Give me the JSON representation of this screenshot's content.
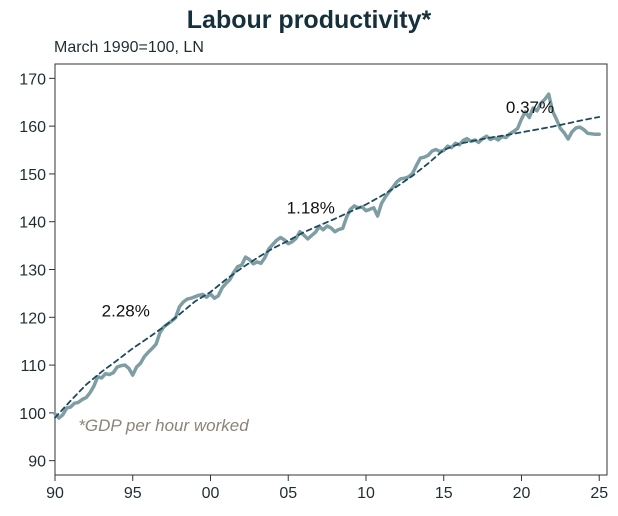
{
  "chart_data": {
    "type": "line",
    "title": "Labour productivity*",
    "subtitle": "March 1990=100, LN",
    "note": "*GDP per hour worked",
    "xlabel": "",
    "ylabel": "",
    "x_ticks": [
      {
        "value": 1990,
        "label": "90"
      },
      {
        "value": 1995,
        "label": "95"
      },
      {
        "value": 2000,
        "label": "00"
      },
      {
        "value": 2005,
        "label": "05"
      },
      {
        "value": 2010,
        "label": "10"
      },
      {
        "value": 2015,
        "label": "15"
      },
      {
        "value": 2020,
        "label": "20"
      },
      {
        "value": 2025,
        "label": "25"
      }
    ],
    "y_ticks": [
      90,
      100,
      110,
      120,
      130,
      140,
      150,
      160,
      170
    ],
    "xlim": [
      1990,
      2025.5
    ],
    "ylim": [
      87,
      173
    ],
    "grid": false,
    "series": [
      {
        "color": "#7e9ea4",
        "style": "solid",
        "points": [
          [
            1990.0,
            99.8
          ],
          [
            1990.25,
            98.9
          ],
          [
            1990.5,
            99.6
          ],
          [
            1990.75,
            101.0
          ],
          [
            1991.0,
            101.2
          ],
          [
            1991.25,
            102.0
          ],
          [
            1991.5,
            102.2
          ],
          [
            1991.75,
            102.8
          ],
          [
            1992.0,
            103.2
          ],
          [
            1992.25,
            104.2
          ],
          [
            1992.5,
            105.6
          ],
          [
            1992.75,
            107.6
          ],
          [
            1993.0,
            107.3
          ],
          [
            1993.25,
            108.2
          ],
          [
            1993.5,
            108.0
          ],
          [
            1993.75,
            108.4
          ],
          [
            1994.0,
            109.6
          ],
          [
            1994.25,
            109.9
          ],
          [
            1994.5,
            110.0
          ],
          [
            1994.75,
            109.3
          ],
          [
            1995.0,
            107.9
          ],
          [
            1995.25,
            109.6
          ],
          [
            1995.5,
            110.4
          ],
          [
            1995.75,
            111.8
          ],
          [
            1996.0,
            112.7
          ],
          [
            1996.25,
            113.5
          ],
          [
            1996.5,
            114.4
          ],
          [
            1996.75,
            116.8
          ],
          [
            1997.0,
            118.0
          ],
          [
            1997.25,
            118.6
          ],
          [
            1997.5,
            119.2
          ],
          [
            1997.75,
            119.9
          ],
          [
            1998.0,
            122.2
          ],
          [
            1998.25,
            123.2
          ],
          [
            1998.5,
            123.8
          ],
          [
            1998.75,
            124.0
          ],
          [
            1999.0,
            124.3
          ],
          [
            1999.25,
            124.6
          ],
          [
            1999.5,
            124.8
          ],
          [
            1999.75,
            124.2
          ],
          [
            2000.0,
            124.9
          ],
          [
            2000.25,
            124.0
          ],
          [
            2000.5,
            124.5
          ],
          [
            2000.75,
            126.2
          ],
          [
            2001.0,
            127.1
          ],
          [
            2001.25,
            127.9
          ],
          [
            2001.5,
            129.4
          ],
          [
            2001.75,
            130.6
          ],
          [
            2002.0,
            130.9
          ],
          [
            2002.25,
            132.6
          ],
          [
            2002.5,
            132.1
          ],
          [
            2002.75,
            131.2
          ],
          [
            2003.0,
            131.6
          ],
          [
            2003.25,
            131.3
          ],
          [
            2003.5,
            132.5
          ],
          [
            2003.75,
            134.3
          ],
          [
            2004.0,
            135.2
          ],
          [
            2004.25,
            136.1
          ],
          [
            2004.5,
            136.7
          ],
          [
            2004.75,
            136.2
          ],
          [
            2005.0,
            135.4
          ],
          [
            2005.25,
            135.8
          ],
          [
            2005.5,
            136.5
          ],
          [
            2005.75,
            137.9
          ],
          [
            2006.0,
            137.2
          ],
          [
            2006.25,
            136.4
          ],
          [
            2006.5,
            137.1
          ],
          [
            2006.75,
            137.8
          ],
          [
            2007.0,
            139.0
          ],
          [
            2007.25,
            138.3
          ],
          [
            2007.5,
            139.1
          ],
          [
            2007.75,
            138.7
          ],
          [
            2008.0,
            137.9
          ],
          [
            2008.25,
            138.4
          ],
          [
            2008.5,
            138.6
          ],
          [
            2008.75,
            140.9
          ],
          [
            2009.0,
            142.6
          ],
          [
            2009.25,
            143.3
          ],
          [
            2009.5,
            142.9
          ],
          [
            2009.75,
            143.1
          ],
          [
            2010.0,
            142.3
          ],
          [
            2010.25,
            142.6
          ],
          [
            2010.5,
            142.9
          ],
          [
            2010.75,
            141.2
          ],
          [
            2011.0,
            143.8
          ],
          [
            2011.25,
            145.2
          ],
          [
            2011.5,
            146.3
          ],
          [
            2011.75,
            147.3
          ],
          [
            2012.0,
            148.4
          ],
          [
            2012.25,
            149.0
          ],
          [
            2012.5,
            149.1
          ],
          [
            2012.75,
            149.4
          ],
          [
            2013.0,
            150.1
          ],
          [
            2013.25,
            151.8
          ],
          [
            2013.5,
            153.3
          ],
          [
            2013.75,
            153.5
          ],
          [
            2014.0,
            153.9
          ],
          [
            2014.25,
            154.8
          ],
          [
            2014.5,
            155.1
          ],
          [
            2014.75,
            154.7
          ],
          [
            2015.0,
            154.9
          ],
          [
            2015.25,
            155.8
          ],
          [
            2015.5,
            155.5
          ],
          [
            2015.75,
            156.4
          ],
          [
            2016.0,
            156.1
          ],
          [
            2016.25,
            157.0
          ],
          [
            2016.5,
            157.4
          ],
          [
            2016.75,
            156.8
          ],
          [
            2017.0,
            157.1
          ],
          [
            2017.25,
            156.6
          ],
          [
            2017.5,
            157.4
          ],
          [
            2017.75,
            157.9
          ],
          [
            2018.0,
            157.2
          ],
          [
            2018.25,
            157.6
          ],
          [
            2018.5,
            157.1
          ],
          [
            2018.75,
            157.8
          ],
          [
            2019.0,
            157.6
          ],
          [
            2019.25,
            158.4
          ],
          [
            2019.5,
            158.9
          ],
          [
            2019.75,
            159.5
          ],
          [
            2020.0,
            161.5
          ],
          [
            2020.25,
            163.0
          ],
          [
            2020.5,
            161.8
          ],
          [
            2020.75,
            163.8
          ],
          [
            2021.0,
            163.2
          ],
          [
            2021.25,
            164.8
          ],
          [
            2021.5,
            165.6
          ],
          [
            2021.75,
            166.7
          ],
          [
            2022.0,
            163.1
          ],
          [
            2022.25,
            161.4
          ],
          [
            2022.5,
            159.5
          ],
          [
            2022.75,
            158.6
          ],
          [
            2023.0,
            157.3
          ],
          [
            2023.25,
            158.8
          ],
          [
            2023.5,
            159.6
          ],
          [
            2023.75,
            159.8
          ],
          [
            2024.0,
            159.3
          ],
          [
            2024.25,
            158.5
          ],
          [
            2024.5,
            158.4
          ],
          [
            2024.75,
            158.3
          ],
          [
            2025.0,
            158.3
          ]
        ]
      },
      {
        "color": "#1d4a5c",
        "style": "dashed",
        "points": [
          [
            1990.0,
            99.0
          ],
          [
            1991.0,
            102.5
          ],
          [
            1992.0,
            105.9
          ],
          [
            1993.0,
            108.6
          ],
          [
            1994.0,
            111.0
          ],
          [
            1995.0,
            113.5
          ],
          [
            1996.0,
            115.7
          ],
          [
            1997.0,
            118.0
          ],
          [
            1998.0,
            120.6
          ],
          [
            1999.0,
            123.3
          ],
          [
            2000.0,
            125.3
          ],
          [
            2001.0,
            127.9
          ],
          [
            2002.0,
            130.3
          ],
          [
            2003.0,
            132.4
          ],
          [
            2004.0,
            134.4
          ],
          [
            2005.0,
            136.0
          ],
          [
            2006.0,
            137.8
          ],
          [
            2007.0,
            139.2
          ],
          [
            2008.0,
            140.6
          ],
          [
            2009.0,
            142.1
          ],
          [
            2010.0,
            143.6
          ],
          [
            2011.0,
            145.4
          ],
          [
            2012.0,
            147.4
          ],
          [
            2013.0,
            149.6
          ],
          [
            2014.0,
            152.2
          ],
          [
            2015.0,
            155.0
          ],
          [
            2016.0,
            156.3
          ],
          [
            2017.0,
            157.0
          ],
          [
            2018.0,
            157.6
          ],
          [
            2019.0,
            158.1
          ],
          [
            2020.0,
            158.7
          ],
          [
            2021.0,
            159.3
          ],
          [
            2022.0,
            159.9
          ],
          [
            2023.0,
            160.6
          ],
          [
            2024.0,
            161.3
          ],
          [
            2025.0,
            161.9
          ]
        ]
      }
    ],
    "annotations": [
      {
        "text": "2.28%",
        "x": 1993.0,
        "y": 120.2
      },
      {
        "text": "1.18%",
        "x": 2004.9,
        "y": 141.7
      },
      {
        "text": "0.37%",
        "x": 2019.0,
        "y": 162.7
      }
    ],
    "note_position": {
      "x": 1991.5,
      "y": 96.2
    }
  }
}
